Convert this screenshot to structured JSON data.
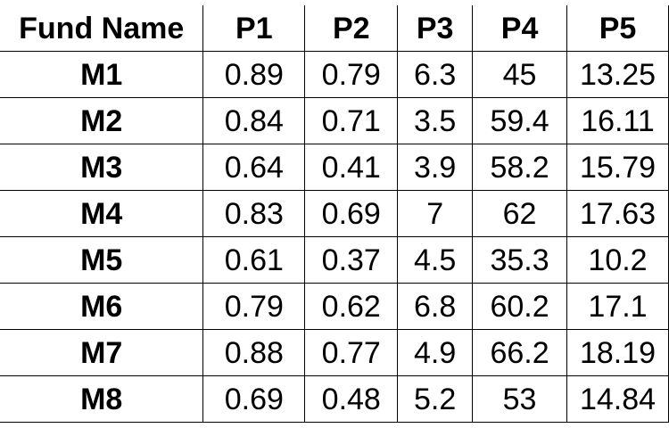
{
  "table": {
    "headers": [
      "Fund Name",
      "P1",
      "P2",
      "P3",
      "P4",
      "P5"
    ],
    "rows": [
      [
        "M1",
        "0.89",
        "0.79",
        "6.3",
        "45",
        "13.25"
      ],
      [
        "M2",
        "0.84",
        "0.71",
        "3.5",
        "59.4",
        "16.11"
      ],
      [
        "M3",
        "0.64",
        "0.41",
        "3.9",
        "58.2",
        "15.79"
      ],
      [
        "M4",
        "0.83",
        "0.69",
        "7",
        "62",
        "17.63"
      ],
      [
        "M5",
        "0.61",
        "0.37",
        "4.5",
        "35.3",
        "10.2"
      ],
      [
        "M6",
        "0.79",
        "0.62",
        "6.8",
        "60.2",
        "17.1"
      ],
      [
        "M7",
        "0.88",
        "0.77",
        "4.9",
        "66.2",
        "18.19"
      ],
      [
        "M8",
        "0.69",
        "0.48",
        "5.2",
        "53",
        "14.84"
      ]
    ]
  }
}
